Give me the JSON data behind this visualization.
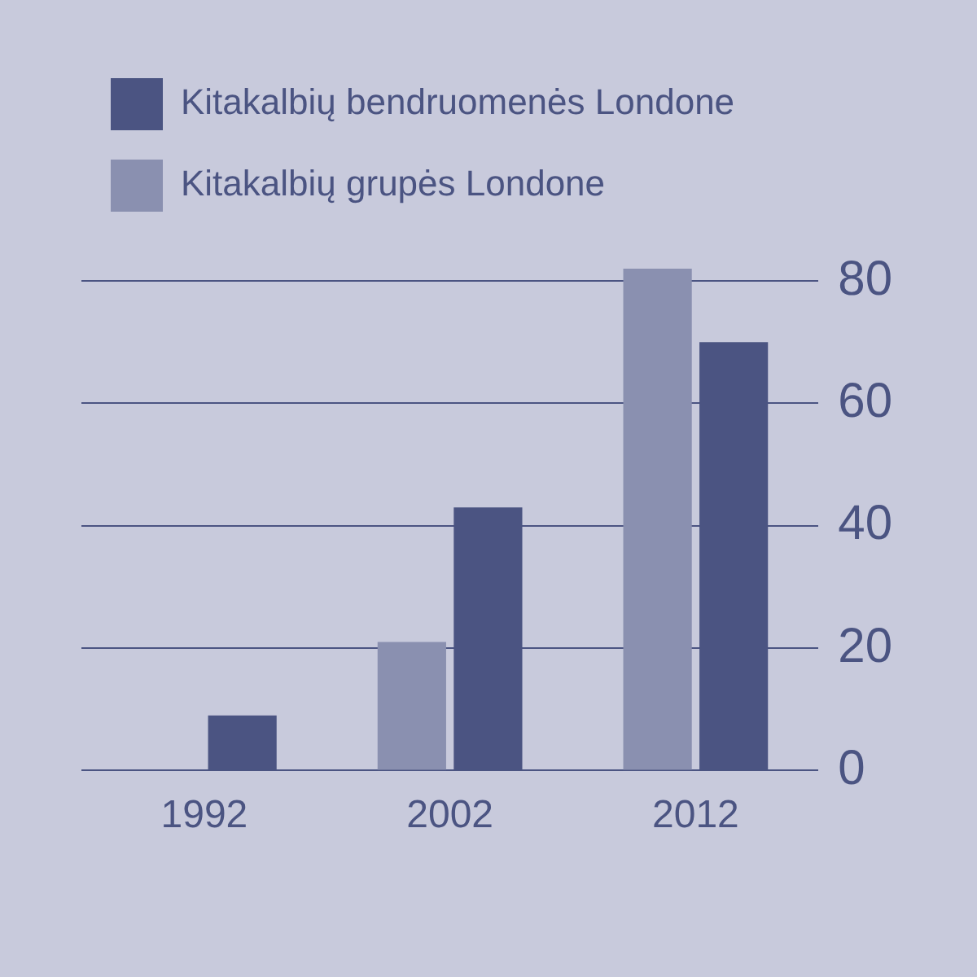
{
  "chart_data": {
    "type": "bar",
    "categories": [
      "1992",
      "2002",
      "2012"
    ],
    "series": [
      {
        "name": "Kitakalbių grupės Londone",
        "color": "#8a90b0",
        "values": [
          null,
          21,
          82
        ]
      },
      {
        "name": "Kitakalbių bendruomenės Londone",
        "color": "#4b5482",
        "values": [
          9,
          43,
          70
        ]
      }
    ],
    "ylim": [
      0,
      82
    ],
    "yticks": [
      0,
      20,
      40,
      60,
      80
    ],
    "grid": "y",
    "legend": "top left"
  }
}
